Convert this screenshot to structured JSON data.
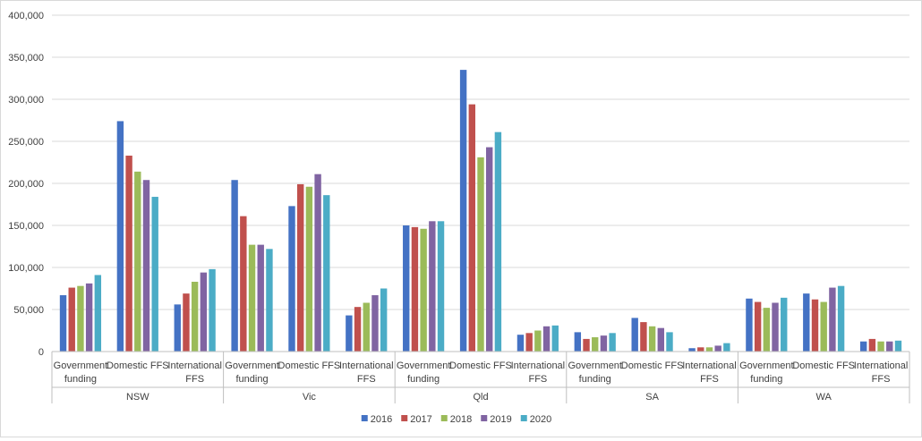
{
  "chart_data": {
    "type": "bar",
    "title": "",
    "xlabel": "",
    "ylabel": "",
    "ylim": [
      0,
      400000
    ],
    "yticks": [
      0,
      50000,
      100000,
      150000,
      200000,
      250000,
      300000,
      350000,
      400000
    ],
    "ytick_labels": [
      "0",
      "50,000",
      "100,000",
      "150,000",
      "200,000",
      "250,000",
      "300,000",
      "350,000",
      "400,000"
    ],
    "grid": true,
    "legend_position": "bottom",
    "groups": [
      "NSW",
      "Vic",
      "Qld",
      "SA",
      "WA"
    ],
    "subcategories": [
      [
        "Government",
        "funding"
      ],
      [
        "Domestic FFS"
      ],
      [
        "International",
        "FFS"
      ]
    ],
    "categories": [
      "NSW Government funding",
      "NSW Domestic FFS",
      "NSW International FFS",
      "Vic Government funding",
      "Vic Domestic FFS",
      "Vic International FFS",
      "Qld Government funding",
      "Qld Domestic FFS",
      "Qld International FFS",
      "SA Government funding",
      "SA Domestic FFS",
      "SA International FFS",
      "WA Government funding",
      "WA Domestic FFS",
      "WA International FFS"
    ],
    "series": [
      {
        "name": "2016",
        "color": "#4472c4",
        "values": [
          67000,
          274000,
          56000,
          204000,
          173000,
          43000,
          150000,
          335000,
          20000,
          23000,
          40000,
          4000,
          63000,
          69000,
          12000
        ]
      },
      {
        "name": "2017",
        "color": "#c0504d",
        "values": [
          76000,
          233000,
          69000,
          161000,
          199000,
          53000,
          148000,
          294000,
          22000,
          15000,
          35000,
          5000,
          59000,
          62000,
          15000
        ]
      },
      {
        "name": "2018",
        "color": "#9bbb59",
        "values": [
          78000,
          214000,
          83000,
          127000,
          196000,
          58000,
          146000,
          231000,
          25000,
          17000,
          30000,
          5000,
          52000,
          59000,
          12000
        ]
      },
      {
        "name": "2019",
        "color": "#8064a2",
        "values": [
          81000,
          204000,
          94000,
          127000,
          211000,
          67000,
          155000,
          243000,
          30000,
          19000,
          28000,
          7000,
          58000,
          76000,
          12000
        ]
      },
      {
        "name": "2020",
        "color": "#4bacc6",
        "values": [
          91000,
          184000,
          98000,
          122000,
          186000,
          75000,
          155000,
          261000,
          31000,
          22000,
          23000,
          10000,
          64000,
          78000,
          13000
        ]
      }
    ]
  }
}
